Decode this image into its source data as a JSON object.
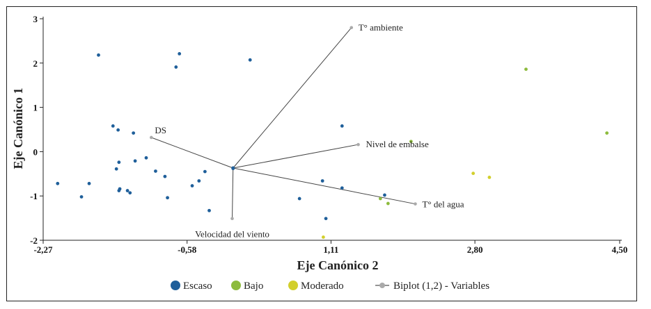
{
  "chart_data": {
    "type": "scatter",
    "xlabel": "Eje Canónico 2",
    "ylabel": "Eje Canónico 1",
    "xlim": [
      -2.27,
      4.5
    ],
    "ylim": [
      -2,
      3
    ],
    "x_ticks": [
      "-2,27",
      "-0,58",
      "1,11",
      "2,80",
      "4,50"
    ],
    "x_tick_values": [
      -2.27,
      -0.58,
      1.11,
      2.8,
      4.5
    ],
    "y_ticks": [
      "3",
      "2",
      "1",
      "0",
      "-1",
      "-2"
    ],
    "y_tick_values": [
      3,
      2,
      1,
      0,
      -1,
      -2
    ],
    "series": [
      {
        "name": "Escaso",
        "color": "#1f5f9a",
        "points": [
          [
            -2.1,
            -0.72
          ],
          [
            -1.82,
            -1.02
          ],
          [
            -1.73,
            -0.72
          ],
          [
            -1.62,
            2.18
          ],
          [
            -1.45,
            0.58
          ],
          [
            -1.39,
            0.49
          ],
          [
            -1.37,
            -0.84
          ],
          [
            -1.38,
            -0.24
          ],
          [
            -1.41,
            -0.39
          ],
          [
            -1.38,
            -0.88
          ],
          [
            -1.28,
            -0.88
          ],
          [
            -1.25,
            -0.93
          ],
          [
            -1.21,
            0.42
          ],
          [
            -1.19,
            -0.21
          ],
          [
            -1.06,
            -0.14
          ],
          [
            -0.95,
            -0.44
          ],
          [
            -0.84,
            -0.56
          ],
          [
            -0.81,
            -1.04
          ],
          [
            -0.71,
            1.91
          ],
          [
            -0.67,
            2.21
          ],
          [
            -0.52,
            -0.77
          ],
          [
            -0.44,
            -0.66
          ],
          [
            -0.37,
            -0.45
          ],
          [
            -0.32,
            -1.33
          ],
          [
            -0.04,
            -0.38
          ],
          [
            0.16,
            2.07
          ],
          [
            0.74,
            -1.06
          ],
          [
            1.01,
            -0.66
          ],
          [
            1.05,
            -1.51
          ],
          [
            1.24,
            0.58
          ],
          [
            1.24,
            -0.82
          ],
          [
            1.74,
            -0.98
          ]
        ]
      },
      {
        "name": "Bajo",
        "color": "#8dbb3d",
        "points": [
          [
            1.69,
            -1.06
          ],
          [
            1.78,
            -1.17
          ],
          [
            2.05,
            0.23
          ],
          [
            3.4,
            1.86
          ],
          [
            4.35,
            0.42
          ]
        ]
      },
      {
        "name": "Moderado",
        "color": "#d2cf2c",
        "points": [
          [
            1.02,
            -1.93
          ],
          [
            2.78,
            -0.49
          ],
          [
            2.97,
            -0.58
          ]
        ]
      }
    ],
    "biplot": {
      "name": "Biplot (1,2) - Variables",
      "color": "#555555",
      "origin": [
        -0.04,
        -0.37
      ],
      "vectors": [
        {
          "label": "T° ambiente",
          "x": 1.35,
          "y": 2.8
        },
        {
          "label": "Nivel de embalse",
          "x": 1.43,
          "y": 0.16
        },
        {
          "label": "DS",
          "x": -1.0,
          "y": 0.32
        },
        {
          "label": "T° del agua",
          "x": 2.1,
          "y": -1.18
        },
        {
          "label": "Velocidad del viento",
          "x": -0.05,
          "y": -1.51
        }
      ]
    }
  },
  "legend": {
    "items": [
      {
        "label": "Escaso",
        "color": "#1f5f9a"
      },
      {
        "label": "Bajo",
        "color": "#8dbb3d"
      },
      {
        "label": "Moderado",
        "color": "#d2cf2c"
      },
      {
        "label": "Biplot (1,2) - Variables",
        "color": "#aaaaaa"
      }
    ]
  }
}
